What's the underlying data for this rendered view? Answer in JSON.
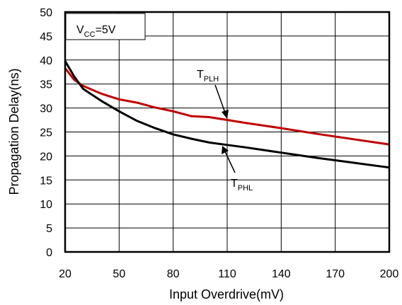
{
  "chart_data": {
    "type": "line",
    "xlabel": "Input Overdrive(mV)",
    "ylabel": "Propagation Delay(ns)",
    "xlim": [
      20,
      200
    ],
    "ylim": [
      0,
      50
    ],
    "xticks": [
      20,
      50,
      80,
      110,
      140,
      170,
      200
    ],
    "yticks": [
      0,
      5,
      10,
      15,
      20,
      25,
      30,
      35,
      40,
      45,
      50
    ],
    "grid": true,
    "condition": {
      "main": "V",
      "sub": "CC",
      "rest": "=5V"
    },
    "series": [
      {
        "key": "tplh",
        "label_main": "T",
        "label_sub": "PLH",
        "color": "#c00000",
        "x": [
          20,
          25,
          30,
          40,
          50,
          60,
          70,
          80,
          90,
          100,
          110,
          120,
          140,
          160,
          180,
          200
        ],
        "y": [
          38.3,
          35.9,
          34.6,
          33.0,
          31.8,
          31.1,
          30.1,
          29.3,
          28.3,
          28.1,
          27.5,
          26.9,
          25.8,
          24.6,
          23.5,
          22.4
        ]
      },
      {
        "key": "tphl",
        "label_main": "T",
        "label_sub": "PHL",
        "color": "#000000",
        "x": [
          20,
          25,
          30,
          40,
          50,
          60,
          70,
          80,
          90,
          100,
          110,
          120,
          140,
          160,
          180,
          200
        ],
        "y": [
          39.8,
          36.6,
          34.0,
          31.5,
          29.3,
          27.3,
          25.8,
          24.5,
          23.6,
          22.8,
          22.3,
          21.8,
          20.7,
          19.6,
          18.6,
          17.6
        ]
      }
    ]
  }
}
